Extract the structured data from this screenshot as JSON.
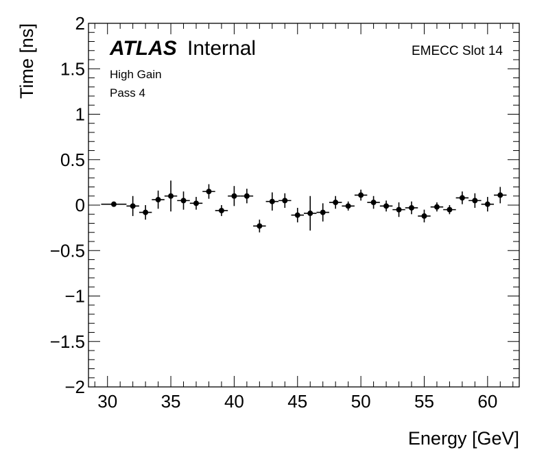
{
  "chart_data": {
    "type": "scatter",
    "title": "",
    "xlabel": "Energy [GeV]",
    "ylabel": "Time [ns]",
    "xlim": [
      28.5,
      62.5
    ],
    "ylim": [
      -2,
      2
    ],
    "x_ticks": [
      30,
      35,
      40,
      45,
      50,
      55,
      60
    ],
    "x_tick_labels": [
      "30",
      "35",
      "40",
      "45",
      "50",
      "55",
      "60"
    ],
    "y_ticks": [
      -2,
      -1.5,
      -1,
      -0.5,
      0,
      0.5,
      1,
      1.5,
      2
    ],
    "y_tick_labels": [
      "−2",
      "−1.5",
      "−1",
      "−0.5",
      "0",
      "0.5",
      "1",
      "1.5",
      "2"
    ],
    "series": [
      {
        "name": "High Gain Pass 4",
        "color": "#000000",
        "points": [
          {
            "x": 30.5,
            "xerr": 1.0,
            "y": 0.01,
            "yerr": 0.02
          },
          {
            "x": 32,
            "xerr": 0.5,
            "y": -0.01,
            "yerr": 0.11
          },
          {
            "x": 33,
            "xerr": 0.5,
            "y": -0.08,
            "yerr": 0.08
          },
          {
            "x": 34,
            "xerr": 0.5,
            "y": 0.06,
            "yerr": 0.1
          },
          {
            "x": 35,
            "xerr": 0.5,
            "y": 0.1,
            "yerr": 0.17
          },
          {
            "x": 36,
            "xerr": 0.5,
            "y": 0.05,
            "yerr": 0.1
          },
          {
            "x": 37,
            "xerr": 0.5,
            "y": 0.02,
            "yerr": 0.07
          },
          {
            "x": 38,
            "xerr": 0.5,
            "y": 0.15,
            "yerr": 0.08
          },
          {
            "x": 39,
            "xerr": 0.5,
            "y": -0.06,
            "yerr": 0.06
          },
          {
            "x": 40,
            "xerr": 0.5,
            "y": 0.1,
            "yerr": 0.11
          },
          {
            "x": 41,
            "xerr": 0.5,
            "y": 0.1,
            "yerr": 0.08
          },
          {
            "x": 42,
            "xerr": 0.5,
            "y": -0.23,
            "yerr": 0.07
          },
          {
            "x": 43,
            "xerr": 0.5,
            "y": 0.04,
            "yerr": 0.1
          },
          {
            "x": 44,
            "xerr": 0.5,
            "y": 0.05,
            "yerr": 0.08
          },
          {
            "x": 45,
            "xerr": 0.5,
            "y": -0.11,
            "yerr": 0.08
          },
          {
            "x": 46,
            "xerr": 0.5,
            "y": -0.09,
            "yerr": 0.19
          },
          {
            "x": 47,
            "xerr": 0.5,
            "y": -0.08,
            "yerr": 0.1
          },
          {
            "x": 48,
            "xerr": 0.5,
            "y": 0.03,
            "yerr": 0.07
          },
          {
            "x": 49,
            "xerr": 0.5,
            "y": -0.01,
            "yerr": 0.05
          },
          {
            "x": 50,
            "xerr": 0.5,
            "y": 0.11,
            "yerr": 0.06
          },
          {
            "x": 51,
            "xerr": 0.5,
            "y": 0.03,
            "yerr": 0.07
          },
          {
            "x": 52,
            "xerr": 0.5,
            "y": -0.01,
            "yerr": 0.06
          },
          {
            "x": 53,
            "xerr": 0.5,
            "y": -0.05,
            "yerr": 0.08
          },
          {
            "x": 54,
            "xerr": 0.5,
            "y": -0.03,
            "yerr": 0.07
          },
          {
            "x": 55,
            "xerr": 0.5,
            "y": -0.12,
            "yerr": 0.07
          },
          {
            "x": 56,
            "xerr": 0.5,
            "y": -0.02,
            "yerr": 0.05
          },
          {
            "x": 57,
            "xerr": 0.5,
            "y": -0.05,
            "yerr": 0.05
          },
          {
            "x": 58,
            "xerr": 0.5,
            "y": 0.08,
            "yerr": 0.07
          },
          {
            "x": 59,
            "xerr": 0.5,
            "y": 0.05,
            "yerr": 0.08
          },
          {
            "x": 60,
            "xerr": 0.5,
            "y": 0.01,
            "yerr": 0.08
          },
          {
            "x": 61,
            "xerr": 0.5,
            "y": 0.11,
            "yerr": 0.09
          }
        ]
      }
    ],
    "annotations": {
      "atlas": "ATLAS",
      "internal": "Internal",
      "gain": "High Gain",
      "pass": "Pass 4",
      "slot": "EMECC Slot 14"
    },
    "grid": false,
    "legend": "none"
  }
}
